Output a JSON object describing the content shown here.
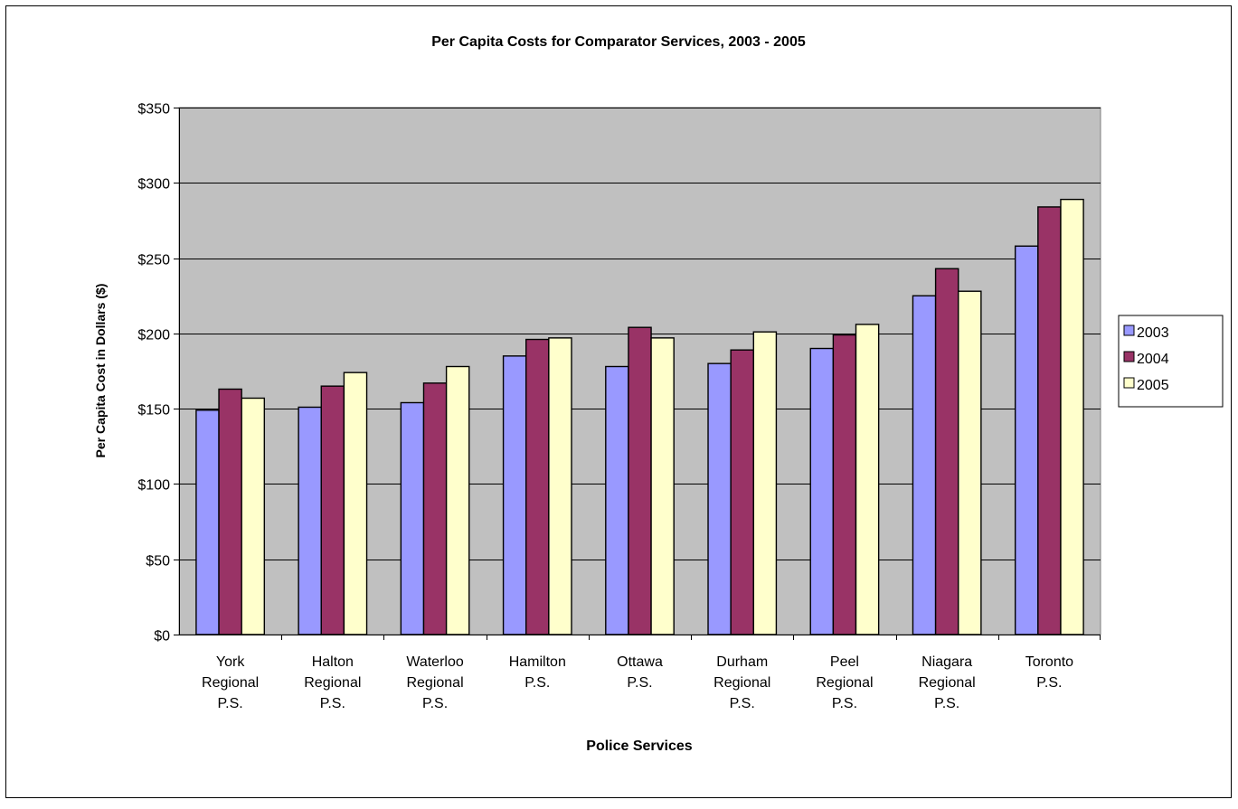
{
  "chart_data": {
    "type": "bar",
    "title": "Per Capita Costs for Comparator Services, 2003 - 2005",
    "xlabel": "Police Services",
    "ylabel": "Per Capita Cost in Dollars ($)",
    "ylim": [
      0,
      350
    ],
    "ytick_step": 50,
    "ytick_labels": [
      "$0",
      "$50",
      "$100",
      "$150",
      "$200",
      "$250",
      "$300",
      "$350"
    ],
    "grid": true,
    "legend_position": "right",
    "categories": [
      [
        "York",
        "Regional",
        "P.S."
      ],
      [
        "Halton",
        "Regional",
        "P.S."
      ],
      [
        "Waterloo",
        "Regional",
        "P.S."
      ],
      [
        "Hamilton",
        "P.S."
      ],
      [
        "Ottawa",
        "P.S."
      ],
      [
        "Durham",
        "Regional",
        "P.S."
      ],
      [
        "Peel",
        "Regional",
        "P.S."
      ],
      [
        "Niagara",
        "Regional",
        "P.S."
      ],
      [
        "Toronto",
        "P.S."
      ]
    ],
    "series": [
      {
        "name": "2003",
        "color": "#9999ff",
        "values": [
          149,
          151,
          154,
          185,
          178,
          180,
          190,
          225,
          258
        ]
      },
      {
        "name": "2004",
        "color": "#993366",
        "values": [
          163,
          165,
          167,
          196,
          204,
          189,
          199,
          243,
          284
        ]
      },
      {
        "name": "2005",
        "color": "#ffffcc",
        "values": [
          157,
          174,
          178,
          197,
          197,
          201,
          206,
          228,
          289
        ]
      }
    ],
    "colors": {
      "plot_background": "#c0c0c0",
      "gridline": "#000000",
      "frame": "#000000"
    }
  }
}
